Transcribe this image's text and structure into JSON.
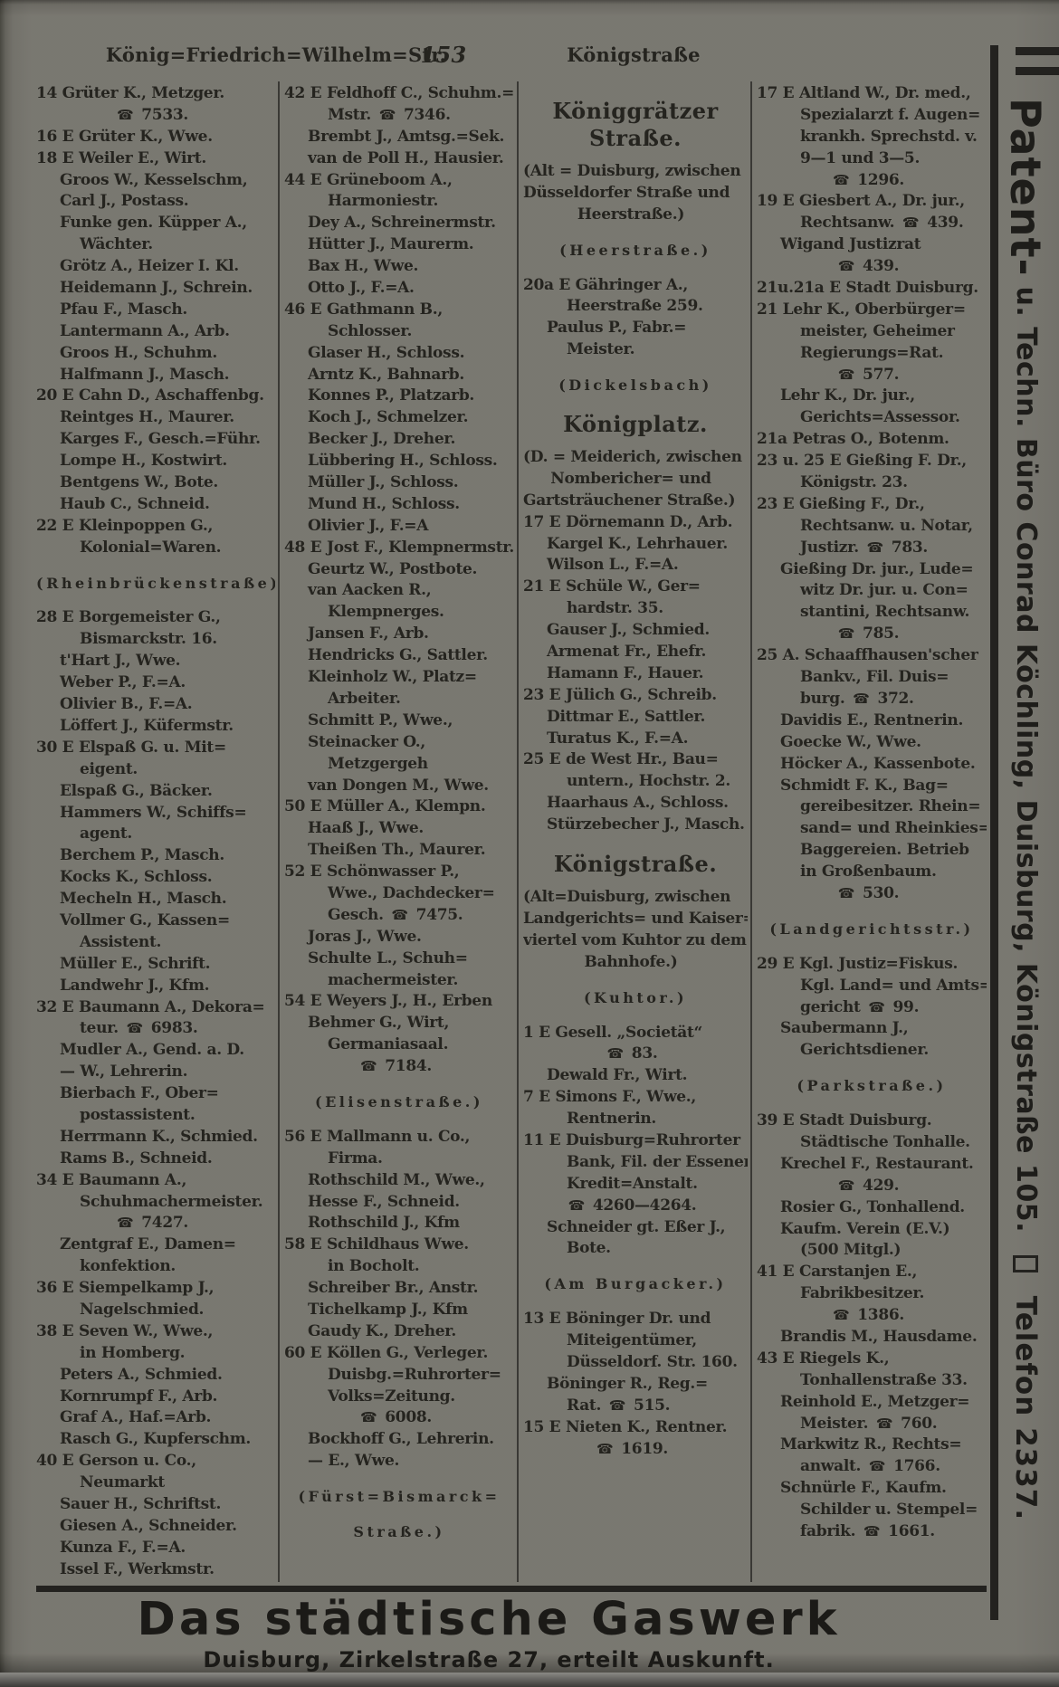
{
  "header": {
    "left_title": "König=Friedrich=Wilhelm=Str.",
    "page_number": "153",
    "right_title": "Königstraße"
  },
  "columns": [
    {
      "lines": [
        [
          "n",
          "14 Grüter K., Metzger."
        ],
        [
          "c",
          "☎ 7533."
        ],
        [
          "n",
          "16 E Grüter K., Wwe."
        ],
        [
          "n",
          "18 E Weiler E., Wirt."
        ],
        [
          "i",
          "Groos W., Kesselschm,"
        ],
        [
          "i",
          "Carl J., Postass."
        ],
        [
          "i",
          "Funke gen. Küpper A.,"
        ],
        [
          "j",
          "Wächter."
        ],
        [
          "i",
          "Grötz A., Heizer I. Kl."
        ],
        [
          "i",
          "Heidemann J., Schrein."
        ],
        [
          "i",
          "Pfau F., Masch."
        ],
        [
          "i",
          "Lantermann A., Arb."
        ],
        [
          "i",
          "Groos H., Schuhm."
        ],
        [
          "i",
          "Halfmann J., Masch."
        ],
        [
          "n",
          "20 E Cahn D., Aschaffenbg."
        ],
        [
          "i",
          "Reintges H., Maurer."
        ],
        [
          "i",
          "Karges F., Gesch.=Führ."
        ],
        [
          "i",
          "Lompe H., Kostwirt."
        ],
        [
          "i",
          "Bentgens W., Bote."
        ],
        [
          "i",
          "Haub C., Schneid."
        ],
        [
          "n",
          "22 E Kleinpoppen G.,"
        ],
        [
          "j",
          "Kolonial=Waren."
        ],
        [
          "sp",
          "(Rheinbrückenstraße)"
        ],
        [
          "n",
          "28 E Borgemeister G.,"
        ],
        [
          "j",
          "Bismarckstr. 16."
        ],
        [
          "i",
          "t'Hart J., Wwe."
        ],
        [
          "i",
          "Weber P., F.=A."
        ],
        [
          "i",
          "Olivier B., F.=A."
        ],
        [
          "i",
          "Löffert J., Küfermstr."
        ],
        [
          "n",
          "30 E Elspaß G. u. Mit="
        ],
        [
          "j",
          "eigent."
        ],
        [
          "i",
          "Elspaß G., Bäcker."
        ],
        [
          "i",
          "Hammers W., Schiffs="
        ],
        [
          "j",
          "agent."
        ],
        [
          "i",
          "Berchem P., Masch."
        ],
        [
          "i",
          "Kocks K., Schloss."
        ],
        [
          "i",
          "Mecheln H., Masch."
        ],
        [
          "i",
          "Vollmer G., Kassen="
        ],
        [
          "j",
          "Assistent."
        ],
        [
          "i",
          "Müller E., Schrift."
        ],
        [
          "i",
          "Landwehr J., Kfm."
        ],
        [
          "n",
          "32 E Baumann A., Dekora="
        ],
        [
          "j",
          "teur. ☎ 6983."
        ],
        [
          "i",
          "Mudler A., Gend. a. D."
        ],
        [
          "i",
          "— W., Lehrerin."
        ],
        [
          "i",
          "Bierbach F., Ober="
        ],
        [
          "j",
          "postassistent."
        ],
        [
          "i",
          "Herrmann K., Schmied."
        ],
        [
          "i",
          "Rams B., Schneid."
        ],
        [
          "n",
          "34 E Baumann A.,"
        ],
        [
          "j",
          "Schuhmachermeister."
        ],
        [
          "c",
          "☎ 7427."
        ],
        [
          "i",
          "Zentgraf E., Damen="
        ],
        [
          "j",
          "konfektion."
        ],
        [
          "n",
          "36 E Siempelkamp J.,"
        ],
        [
          "j",
          "Nagelschmied."
        ],
        [
          "n",
          "38 E Seven W., Wwe.,"
        ],
        [
          "j",
          "in Homberg."
        ],
        [
          "i",
          "Peters A., Schmied."
        ],
        [
          "i",
          "Kornrumpf F., Arb."
        ],
        [
          "i",
          "Graf A., Haf.=Arb."
        ],
        [
          "i",
          "Rasch G., Kupferschm."
        ],
        [
          "n",
          "40 E Gerson u. Co.,"
        ],
        [
          "j",
          "Neumarkt"
        ],
        [
          "i",
          "Sauer H., Schriftst."
        ],
        [
          "i",
          "Giesen A., Schneider."
        ],
        [
          "i",
          "Kunza F., F.=A."
        ],
        [
          "i",
          "Issel F., Werkmstr."
        ]
      ]
    },
    {
      "lines": [
        [
          "n",
          "42 E Feldhoff C., Schuhm.="
        ],
        [
          "j",
          "Mstr. ☎ 7346."
        ],
        [
          "i",
          "Brembt J., Amtsg.=Sek."
        ],
        [
          "i",
          "van de Poll H., Hausier."
        ],
        [
          "n",
          "44 E Grüneboom A.,"
        ],
        [
          "j",
          "Harmoniestr."
        ],
        [
          "i",
          "Dey A., Schreinermstr."
        ],
        [
          "i",
          "Hütter J., Maurerm."
        ],
        [
          "i",
          "Bax H., Wwe."
        ],
        [
          "i",
          "Otto J., F.=A."
        ],
        [
          "n",
          "46 E Gathmann B.,"
        ],
        [
          "j",
          "Schlosser."
        ],
        [
          "i",
          "Glaser H., Schloss."
        ],
        [
          "i",
          "Arntz K., Bahnarb."
        ],
        [
          "i",
          "Konnes P., Platzarb."
        ],
        [
          "i",
          "Koch J., Schmelzer."
        ],
        [
          "i",
          "Becker J., Dreher."
        ],
        [
          "i",
          "Lübbering H., Schloss."
        ],
        [
          "i",
          "Müller J., Schloss."
        ],
        [
          "i",
          "Mund H., Schloss."
        ],
        [
          "i",
          "Olivier J., F.=A"
        ],
        [
          "n",
          "48 E Jost F., Klempnermstr."
        ],
        [
          "i",
          "Geurtz W., Postbote."
        ],
        [
          "i",
          "van Aacken R.,"
        ],
        [
          "j",
          "Klempnerges."
        ],
        [
          "i",
          "Jansen F., Arb."
        ],
        [
          "i",
          "Hendricks G., Sattler."
        ],
        [
          "i",
          "Kleinholz W., Platz="
        ],
        [
          "j",
          "Arbeiter."
        ],
        [
          "i",
          "Schmitt P., Wwe.,"
        ],
        [
          "i",
          "Steinacker O.,"
        ],
        [
          "j",
          "Metzgergeh"
        ],
        [
          "i",
          "van Dongen M., Wwe."
        ],
        [
          "n",
          "50 E Müller A., Klempn."
        ],
        [
          "i",
          "Haaß J., Wwe."
        ],
        [
          "i",
          "Theißen Th., Maurer."
        ],
        [
          "n",
          "52 E Schönwasser P.,"
        ],
        [
          "j",
          "Wwe., Dachdecker="
        ],
        [
          "j",
          "Gesch. ☎ 7475."
        ],
        [
          "i",
          "Joras J., Wwe."
        ],
        [
          "i",
          "Schulte L., Schuh="
        ],
        [
          "j",
          "machermeister."
        ],
        [
          "n",
          "54 E Weyers J., H., Erben"
        ],
        [
          "i",
          "Behmer G., Wirt,"
        ],
        [
          "j",
          "Germaniasaal."
        ],
        [
          "c",
          "☎ 7184."
        ],
        [
          "sp",
          "(Elisenstraße.)"
        ],
        [
          "n",
          "56 E Mallmann u. Co.,"
        ],
        [
          "j",
          "Firma."
        ],
        [
          "i",
          "Rothschild M., Wwe.,"
        ],
        [
          "i",
          "Hesse F., Schneid."
        ],
        [
          "i",
          "Rothschild J., Kfm"
        ],
        [
          "n",
          "58 E Schildhaus Wwe."
        ],
        [
          "j",
          "in Bocholt."
        ],
        [
          "i",
          "Schreiber Br., Anstr."
        ],
        [
          "i",
          "Tichelkamp J., Kfm"
        ],
        [
          "i",
          "Gaudy K., Dreher."
        ],
        [
          "n",
          "60 E Köllen G., Verleger."
        ],
        [
          "j",
          "Duisbg.=Ruhrorter="
        ],
        [
          "j",
          "Volks=Zeitung."
        ],
        [
          "c",
          "☎ 6008."
        ],
        [
          "i",
          "Bockhoff G., Lehrerin."
        ],
        [
          "i",
          "— E., Wwe."
        ],
        [
          "sp",
          "(Fürst=Bismarck="
        ],
        [
          "sp",
          "Straße.)"
        ]
      ]
    },
    {
      "lines": [
        [
          "h",
          "Königgrätzer Straße."
        ],
        [
          "nl",
          "(Alt = Duisburg, zwischen"
        ],
        [
          "nl",
          "Düsseldorfer Straße und"
        ],
        [
          "c",
          "Heerstraße.)"
        ],
        [
          "sp",
          "(Heerstraße.)"
        ],
        [
          "n",
          "20a E Gähringer A.,"
        ],
        [
          "j",
          "Heerstraße 259."
        ],
        [
          "i",
          "Paulus P., Fabr.="
        ],
        [
          "j",
          "Meister."
        ],
        [
          "sp",
          "(Dickelsbach)"
        ],
        [
          "h",
          "Königplatz."
        ],
        [
          "nl",
          "(D. = Meiderich, zwischen"
        ],
        [
          "c",
          "Nombericher= und"
        ],
        [
          "nl",
          "Gartsträuchener Straße.)"
        ],
        [
          "n",
          "17 E Dörnemann D., Arb."
        ],
        [
          "i",
          "Kargel K., Lehrhauer."
        ],
        [
          "i",
          "Wilson L., F.=A."
        ],
        [
          "n",
          "21 E Schüle W., Ger="
        ],
        [
          "j",
          "hardstr. 35."
        ],
        [
          "i",
          "Gauser J., Schmied."
        ],
        [
          "i",
          "Armenat Fr., Ehefr."
        ],
        [
          "i",
          "Hamann F., Hauer."
        ],
        [
          "n",
          "23 E Jülich G., Schreib."
        ],
        [
          "i",
          "Dittmar E., Sattler."
        ],
        [
          "i",
          "Turatus K., F.=A."
        ],
        [
          "n",
          "25 E de West Hr., Bau="
        ],
        [
          "j",
          "untern., Hochstr. 2."
        ],
        [
          "i",
          "Haarhaus A., Schloss."
        ],
        [
          "i",
          "Stürzebecher J., Masch."
        ],
        [
          "h",
          "Königstraße."
        ],
        [
          "nl",
          "(Alt=Duisburg, zwischen"
        ],
        [
          "nl",
          "Landgerichts= und Kaiser="
        ],
        [
          "nl",
          "viertel vom Kuhtor zu dem"
        ],
        [
          "c",
          "Bahnhofe.)"
        ],
        [
          "sp",
          "(Kuhtor.)"
        ],
        [
          "n",
          "1 E Gesell. „Societät“"
        ],
        [
          "c",
          "☎ 83."
        ],
        [
          "i",
          "Dewald Fr., Wirt."
        ],
        [
          "n",
          "7 E Simons F., Wwe.,"
        ],
        [
          "j",
          "Rentnerin."
        ],
        [
          "n",
          "11 E Duisburg=Ruhrorter"
        ],
        [
          "j",
          "Bank, Fil. der Essener"
        ],
        [
          "j",
          "Kredit=Anstalt."
        ],
        [
          "c",
          "☎ 4260—4264."
        ],
        [
          "i",
          "Schneider gt. Eßer J.,"
        ],
        [
          "j",
          "Bote."
        ],
        [
          "sp",
          "(Am Burgacker.)"
        ],
        [
          "n",
          "13 E Böninger Dr. und"
        ],
        [
          "j",
          "Miteigentümer,"
        ],
        [
          "j",
          "Düsseldorf. Str. 160."
        ],
        [
          "i",
          "Böninger R., Reg.="
        ],
        [
          "j",
          "Rat. ☎ 515."
        ],
        [
          "n",
          "15 E Nieten K., Rentner."
        ],
        [
          "c",
          "☎ 1619."
        ]
      ]
    },
    {
      "lines": [
        [
          "n",
          "17 E Altland W., Dr. med.,"
        ],
        [
          "j",
          "Spezialarzt f. Augen="
        ],
        [
          "j",
          "krankh. Sprechstd. v."
        ],
        [
          "j",
          "9—1 und 3—5."
        ],
        [
          "c",
          "☎ 1296."
        ],
        [
          "n",
          "19 E Giesbert A., Dr. jur.,"
        ],
        [
          "j",
          "Rechtsanw. ☎ 439."
        ],
        [
          "i",
          "Wigand Justizrat"
        ],
        [
          "c",
          "☎ 439."
        ],
        [
          "n",
          "21u.21a E Stadt Duisburg."
        ],
        [
          "n",
          "21 Lehr K., Oberbürger="
        ],
        [
          "j",
          "meister, Geheimer"
        ],
        [
          "j",
          "Regierungs=Rat."
        ],
        [
          "c",
          "☎ 577."
        ],
        [
          "i",
          "Lehr K., Dr. jur.,"
        ],
        [
          "j",
          "Gerichts=Assessor."
        ],
        [
          "n",
          "21a Petras O., Botenm."
        ],
        [
          "n",
          "23 u. 25 E Gießing F. Dr.,"
        ],
        [
          "j",
          "Königstr. 23."
        ],
        [
          "n",
          "23 E Gießing F., Dr.,"
        ],
        [
          "j",
          "Rechtsanw. u. Notar,"
        ],
        [
          "j",
          "Justizr. ☎ 783."
        ],
        [
          "i",
          "Gießing Dr. jur., Lude="
        ],
        [
          "j",
          "witz Dr. jur. u. Con="
        ],
        [
          "j",
          "stantini, Rechtsanw."
        ],
        [
          "c",
          "☎ 785."
        ],
        [
          "n",
          "25 A. Schaaffhausen'scher"
        ],
        [
          "j",
          "Bankv., Fil. Duis="
        ],
        [
          "j",
          "burg. ☎ 372."
        ],
        [
          "i",
          "Davidis E., Rentnerin."
        ],
        [
          "i",
          "Goecke W., Wwe."
        ],
        [
          "i",
          "Höcker A., Kassenbote."
        ],
        [
          "i",
          "Schmidt F. K., Bag="
        ],
        [
          "j",
          "gereibesitzer. Rhein="
        ],
        [
          "j",
          "sand= und Rheinkies="
        ],
        [
          "j",
          "Baggereien. Betrieb"
        ],
        [
          "j",
          "in Großenbaum."
        ],
        [
          "c",
          "☎ 530."
        ],
        [
          "sp",
          "(Landgerichtsstr.)"
        ],
        [
          "n",
          "29 E Kgl. Justiz=Fiskus."
        ],
        [
          "j",
          "Kgl. Land= und Amts="
        ],
        [
          "j",
          "gericht ☎ 99."
        ],
        [
          "i",
          "Saubermann J.,"
        ],
        [
          "j",
          "Gerichtsdiener."
        ],
        [
          "sp",
          "(Parkstraße.)"
        ],
        [
          "n",
          "39 E Stadt Duisburg."
        ],
        [
          "j",
          "Städtische Tonhalle."
        ],
        [
          "i",
          "Krechel F., Restaurant."
        ],
        [
          "c",
          "☎ 429."
        ],
        [
          "i",
          "Rosier G., Tonhallend."
        ],
        [
          "i",
          "Kaufm. Verein (E.V.)"
        ],
        [
          "j",
          "(500 Mitgl.)"
        ],
        [
          "n",
          "41 E Carstanjen E.,"
        ],
        [
          "j",
          "Fabrikbesitzer."
        ],
        [
          "c",
          "☎ 1386."
        ],
        [
          "i",
          "Brandis M., Hausdame."
        ],
        [
          "n",
          "43 E Riegels K.,"
        ],
        [
          "j",
          "Tonhallenstraße 33."
        ],
        [
          "i",
          "Reinhold E., Metzger="
        ],
        [
          "j",
          "Meister. ☎ 760."
        ],
        [
          "i",
          "Markwitz R., Rechts="
        ],
        [
          "j",
          "anwalt. ☎ 1766."
        ],
        [
          "i",
          "Schnürle F., Kaufm."
        ],
        [
          "j",
          "Schilder u. Stempel="
        ],
        [
          "j",
          "fabrik. ☎ 1661."
        ]
      ]
    }
  ],
  "sidebar_ad": {
    "lead": "Patent-",
    "rest": " u. Techn. Büro Conrad Köchling, Duisburg, Königstraße 105. ",
    "telefon": " Telefon 2337."
  },
  "bottom_ad": {
    "title": "Das städtische Gaswerk",
    "subtitle": "Duisburg, Zirkelstraße 27, erteilt Auskunft."
  }
}
